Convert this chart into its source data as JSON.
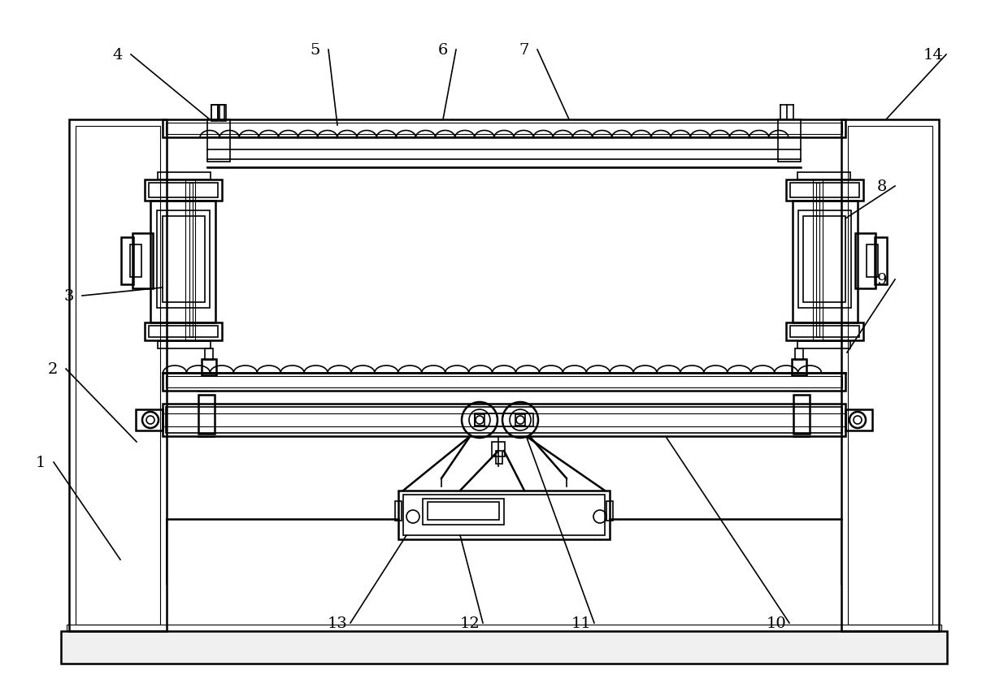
{
  "bg_color": "#ffffff",
  "line_color": "#000000",
  "lw_main": 1.8,
  "lw_detail": 1.2,
  "lw_thin": 0.8,
  "labels": [
    [
      "1",
      50,
      570,
      148,
      690
    ],
    [
      "2",
      65,
      455,
      168,
      545
    ],
    [
      "3",
      85,
      365,
      200,
      355
    ],
    [
      "4",
      145,
      68,
      258,
      148
    ],
    [
      "5",
      388,
      62,
      415,
      155
    ],
    [
      "6",
      545,
      62,
      545,
      148
    ],
    [
      "7",
      645,
      62,
      700,
      148
    ],
    [
      "8",
      1085,
      230,
      1040,
      270
    ],
    [
      "9",
      1085,
      345,
      1042,
      435
    ],
    [
      "10",
      955,
      768,
      820,
      540
    ],
    [
      "11",
      715,
      768,
      648,
      540
    ],
    [
      "12",
      578,
      768,
      566,
      660
    ],
    [
      "13",
      415,
      768,
      500,
      660
    ],
    [
      "14",
      1148,
      68,
      1090,
      148
    ]
  ]
}
